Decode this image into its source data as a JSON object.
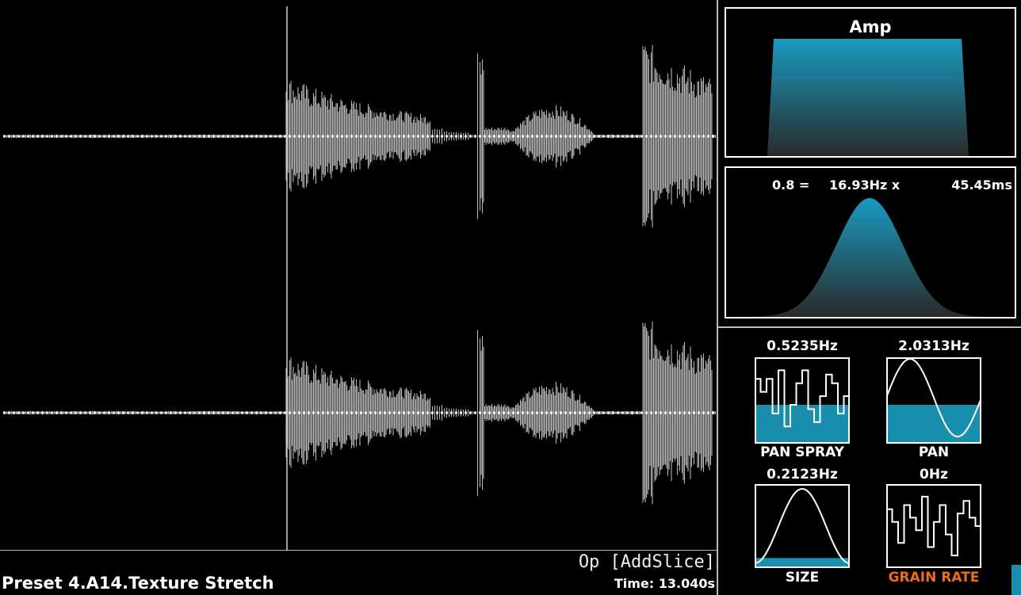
{
  "preset_name": "Preset 4.A14.Texture Stretch",
  "operation": "Op [AddSlice]",
  "time": "Time: 13.040s",
  "amp_panel": {
    "title": "Amp"
  },
  "grain_panel": {
    "ratio": "0.8 =",
    "frequency": "16.93Hz x",
    "duration": "45.45ms"
  },
  "modulators": [
    {
      "rate": "0.5235Hz",
      "label": "PAN SPRAY",
      "shape": "random-steps",
      "fill_level": 0.45,
      "label_color": "#ffffff"
    },
    {
      "rate": "2.0313Hz",
      "label": "PAN",
      "shape": "sine",
      "fill_level": 0.45,
      "label_color": "#ffffff"
    },
    {
      "rate": "0.2123Hz",
      "label": "SIZE",
      "shape": "bell",
      "fill_level": 0.12,
      "label_color": "#ffffff"
    },
    {
      "rate": "0Hz",
      "label": "GRAIN RATE",
      "shape": "random-steps",
      "fill_level": 0.0,
      "label_color": "#e8701c"
    }
  ],
  "colors": {
    "accent": "#1a8fad",
    "waveform": "#b5b5b5",
    "border": "#ffffff",
    "grain_rate_label": "#e8701c"
  }
}
